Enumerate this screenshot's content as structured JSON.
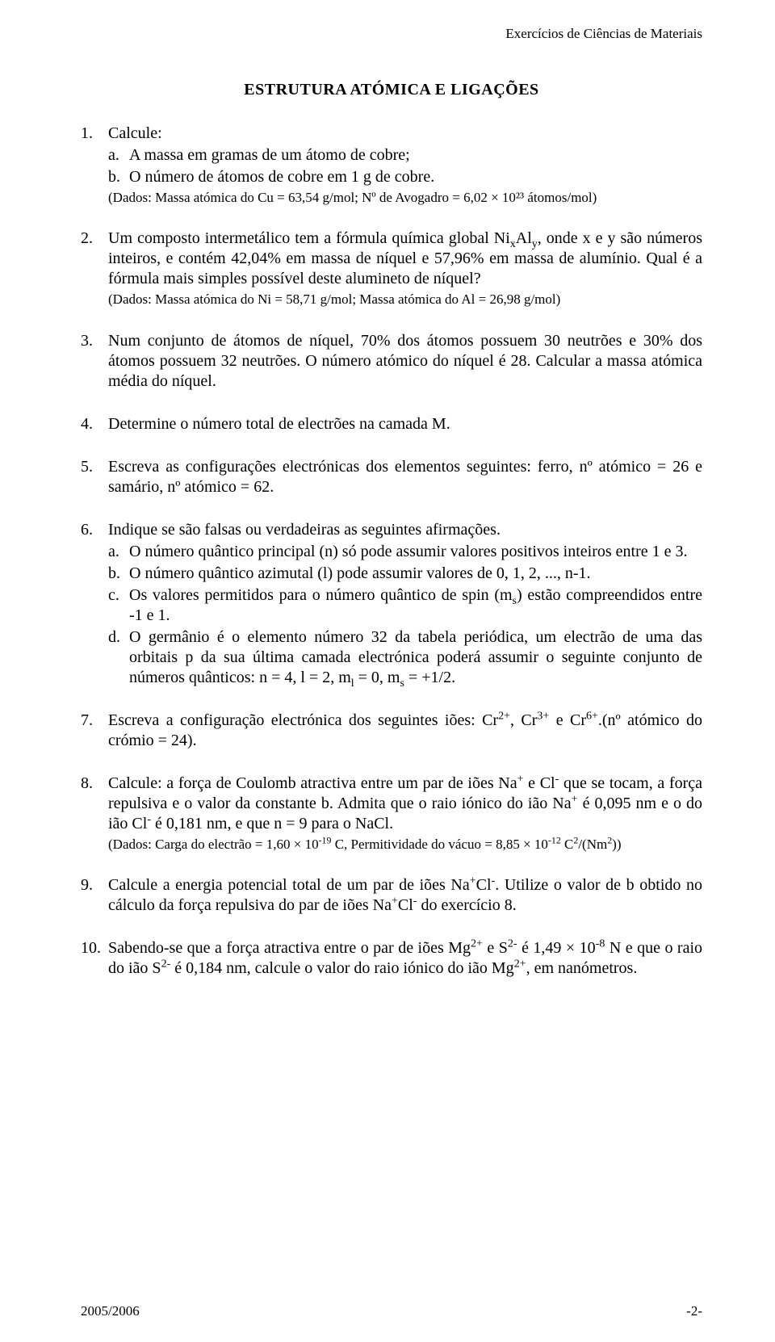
{
  "header": "Exercícios de Ciências de Materiais",
  "title": "ESTRUTURA ATÓMICA E LIGAÇÕES",
  "footer_left": "2005/2006",
  "footer_right": "-2-",
  "q1": {
    "num": "1.",
    "lead": "Calcule:",
    "a": {
      "num": "a.",
      "text": "A massa em gramas de um átomo de cobre;"
    },
    "b": {
      "num": "b.",
      "text": "O número de átomos de cobre em 1 g de cobre."
    },
    "given": "(Dados: Massa atómica do Cu = 63,54 g/mol; Nº de Avogadro = 6,02 × 10²³ átomos/mol)"
  },
  "q2": {
    "num": "2.",
    "text_html": "Um composto intermetálico tem a fórmula química global Ni<sub>x</sub>Al<sub>y</sub>, onde x e y são números inteiros, e contém 42,04% em massa de níquel e 57,96% em massa de alumínio. Qual é a fórmula mais simples possível deste alumineto de níquel?",
    "given": "(Dados: Massa atómica do Ni = 58,71 g/mol; Massa atómica do Al = 26,98 g/mol)"
  },
  "q3": {
    "num": "3.",
    "text": "Num conjunto de átomos de níquel, 70% dos átomos possuem 30 neutrões e 30% dos átomos possuem 32 neutrões. O número atómico do níquel é 28. Calcular a massa atómica média do níquel."
  },
  "q4": {
    "num": "4.",
    "text": "Determine o número total de electrões na camada M."
  },
  "q5": {
    "num": "5.",
    "text": "Escreva as configurações electrónicas dos elementos seguintes: ferro, nº atómico = 26 e samário, nº atómico = 62."
  },
  "q6": {
    "num": "6.",
    "lead": "Indique se são falsas ou verdadeiras as seguintes afirmações.",
    "a": {
      "num": "a.",
      "text": "O número quântico principal (n) só pode assumir valores positivos inteiros entre 1 e 3."
    },
    "b": {
      "num": "b.",
      "text": "O número quântico azimutal (l) pode assumir valores de 0, 1, 2, ..., n-1."
    },
    "c": {
      "num": "c.",
      "text_html": "Os valores permitidos para o número quântico de spin (m<sub>s</sub>) estão compreendidos entre -1 e 1."
    },
    "d": {
      "num": "d.",
      "text_html": "O germânio é o elemento número 32 da tabela periódica, um electrão de uma das orbitais p da sua última camada electrónica poderá assumir o seguinte conjunto de números quânticos: n = 4, l = 2, m<sub>l</sub> = 0, m<sub>s</sub> = +1/2."
    }
  },
  "q7": {
    "num": "7.",
    "text_html": "Escreva a configuração electrónica dos seguintes iões: Cr<sup>2+</sup>, Cr<sup>3+</sup> e Cr<sup>6+</sup>.(nº atómico do crómio = 24)."
  },
  "q8": {
    "num": "8.",
    "text_html": "Calcule: a força de Coulomb atractiva entre um par de iões Na<sup>+</sup> e Cl<sup>-</sup> que se tocam, a força repulsiva e o valor da constante b. Admita que o raio iónico do ião Na<sup>+</sup> é 0,095 nm e o do ião Cl<sup>-</sup> é 0,181 nm, e que n = 9 para o NaCl.",
    "given_html": "(Dados: Carga do electrão = 1,60 × 10<sup>-19</sup> C, Permitividade do vácuo = 8,85 × 10<sup>-12</sup> C<sup>2</sup>/(Nm<sup>2</sup>))"
  },
  "q9": {
    "num": "9.",
    "text_html": "Calcule a energia potencial total de um par de iões Na<sup>+</sup>Cl<sup>-</sup>. Utilize o valor de b obtido no cálculo da força repulsiva do par de iões Na<sup>+</sup>Cl<sup>-</sup> do exercício 8."
  },
  "q10": {
    "num": "10.",
    "text_html": "Sabendo-se que a força atractiva entre o par de iões Mg<sup>2+</sup> e S<sup>2-</sup> é 1,49 × 10<sup>-8</sup> N e que o raio do ião S<sup>2-</sup> é 0,184 nm, calcule o valor do raio iónico do ião Mg<sup>2+</sup>, em nanómetros."
  }
}
